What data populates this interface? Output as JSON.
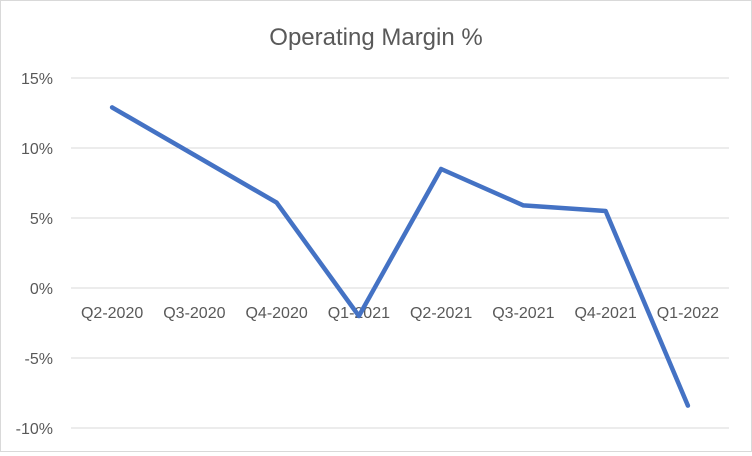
{
  "chart_data": {
    "type": "line",
    "title": "Operating Margin %",
    "xlabel": "",
    "ylabel": "",
    "categories": [
      "Q2-2020",
      "Q3-2020",
      "Q4-2020",
      "Q1-2021",
      "Q2-2021",
      "Q3-2021",
      "Q4-2021",
      "Q1-2022"
    ],
    "series": [
      {
        "values": [
          12.9,
          9.5,
          6.1,
          -2.0,
          8.5,
          5.9,
          5.5,
          -8.4
        ],
        "color": "#4472c4"
      }
    ],
    "ylim": [
      -10,
      15
    ],
    "yticks": [
      15,
      10,
      5,
      0,
      -5,
      -10
    ],
    "ytick_labels": [
      "15%",
      "10%",
      "5%",
      "0%",
      "-5%",
      "-10%"
    ],
    "grid": true,
    "legend": "none",
    "colors": {
      "line": "#4472c4",
      "grid": "#d9d9d9",
      "text": "#595959"
    }
  }
}
